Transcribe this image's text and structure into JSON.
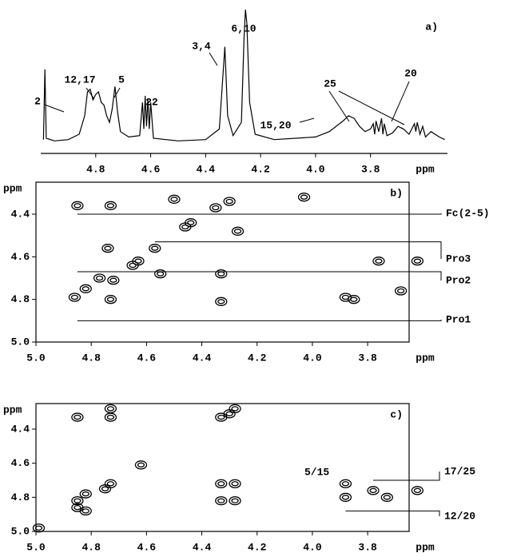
{
  "chart_data": [
    {
      "type": "line",
      "panel_label": "a)",
      "x_label": "ppm",
      "xlim": [
        5.0,
        3.52
      ],
      "xticks": [
        4.8,
        4.6,
        4.4,
        4.2,
        {
          "value": 4.0,
          "label": "4.0"
        },
        3.8
      ],
      "ylim": [
        0,
        100
      ],
      "color": "#000000",
      "x": [
        4.99,
        4.985,
        4.98,
        4.95,
        4.9,
        4.86,
        4.84,
        4.83,
        4.82,
        4.81,
        4.8,
        4.79,
        4.78,
        4.77,
        4.76,
        4.75,
        4.74,
        4.73,
        4.72,
        4.71,
        4.68,
        4.64,
        4.63,
        4.625,
        4.62,
        4.615,
        4.61,
        4.605,
        4.6,
        4.59,
        4.5,
        4.4,
        4.35,
        4.33,
        4.32,
        4.3,
        4.27,
        4.26,
        4.255,
        4.25,
        4.24,
        4.22,
        4.15,
        4.0,
        3.95,
        3.9,
        3.88,
        3.86,
        3.84,
        3.82,
        3.8,
        3.79,
        3.785,
        3.78,
        3.77,
        3.76,
        3.755,
        3.75,
        3.74,
        3.72,
        3.7,
        3.68,
        3.66,
        3.65,
        3.64,
        3.635,
        3.63,
        3.62,
        3.61,
        3.6,
        3.58,
        3.55,
        3.53
      ],
      "values": [
        2,
        55,
        3,
        1,
        2,
        6,
        20,
        38,
        40,
        32,
        36,
        38,
        30,
        28,
        20,
        15,
        25,
        42,
        22,
        8,
        4,
        5,
        30,
        10,
        35,
        12,
        33,
        10,
        30,
        3,
        1,
        2,
        10,
        72,
        20,
        5,
        15,
        80,
        100,
        90,
        30,
        6,
        2,
        4,
        8,
        16,
        20,
        18,
        12,
        8,
        10,
        14,
        6,
        16,
        8,
        18,
        6,
        14,
        5,
        7,
        12,
        10,
        6,
        10,
        14,
        8,
        15,
        6,
        12,
        4,
        8,
        4,
        2
      ],
      "annotations": [
        "2",
        "12,17",
        "5",
        "22",
        "3,4",
        "6,10",
        "15,20",
        "25",
        "20"
      ]
    },
    {
      "type": "scatter",
      "panel_label": "b)",
      "x_label": "ppm",
      "y_label": "ppm",
      "xlim": [
        5.0,
        3.65
      ],
      "xticks": [
        {
          "value": 5.0,
          "label": "5.0"
        },
        4.8,
        4.6,
        4.4,
        4.2,
        {
          "value": 4.0,
          "label": "4.0"
        },
        3.8
      ],
      "ylim": [
        4.25,
        5.0
      ],
      "yticks": [
        4.4,
        4.6,
        4.8,
        {
          "value": 5.0,
          "label": "5.0"
        }
      ],
      "color": "#000000",
      "x": [
        4.85,
        4.73,
        4.5,
        4.03,
        4.35,
        4.3,
        4.27,
        4.46,
        4.44,
        4.74,
        4.57,
        4.63,
        4.65,
        4.55,
        4.33,
        4.77,
        4.72,
        4.82,
        4.86,
        4.73,
        4.33,
        3.88,
        3.85,
        3.76,
        3.62,
        3.68
      ],
      "values": [
        4.36,
        4.36,
        4.33,
        4.32,
        4.37,
        4.34,
        4.48,
        4.46,
        4.44,
        4.56,
        4.56,
        4.62,
        4.64,
        4.68,
        4.68,
        4.7,
        4.71,
        4.75,
        4.79,
        4.8,
        4.81,
        4.79,
        4.8,
        4.62,
        4.62,
        4.76
      ],
      "annotations": [
        "Fc(2-5)",
        "Pro3",
        "Pro2",
        "Pro1"
      ]
    },
    {
      "type": "scatter",
      "panel_label": "c)",
      "x_label": "ppm",
      "y_label": "ppm",
      "xlim": [
        5.0,
        3.65
      ],
      "xticks": [
        {
          "value": 5.0,
          "label": "5.0"
        },
        4.8,
        4.6,
        4.4,
        4.2,
        {
          "value": 4.0,
          "label": "4.0"
        },
        3.8
      ],
      "ylim": [
        4.25,
        5.0
      ],
      "yticks": [
        4.4,
        4.6,
        4.8,
        {
          "value": 5.0,
          "label": "5.0"
        }
      ],
      "color": "#000000",
      "x": [
        4.85,
        4.73,
        4.73,
        4.33,
        4.3,
        4.28,
        4.62,
        4.73,
        4.75,
        4.82,
        4.85,
        4.85,
        4.82,
        4.33,
        4.28,
        4.33,
        4.28,
        3.88,
        3.78,
        3.62,
        3.88,
        3.73,
        4.99
      ],
      "values": [
        4.33,
        4.33,
        4.28,
        4.33,
        4.31,
        4.28,
        4.61,
        4.72,
        4.75,
        4.78,
        4.82,
        4.86,
        4.88,
        4.72,
        4.72,
        4.82,
        4.82,
        4.72,
        4.76,
        4.76,
        4.8,
        4.8,
        4.98
      ],
      "annotations": [
        "5/15",
        "17/25",
        "12/20"
      ]
    }
  ]
}
